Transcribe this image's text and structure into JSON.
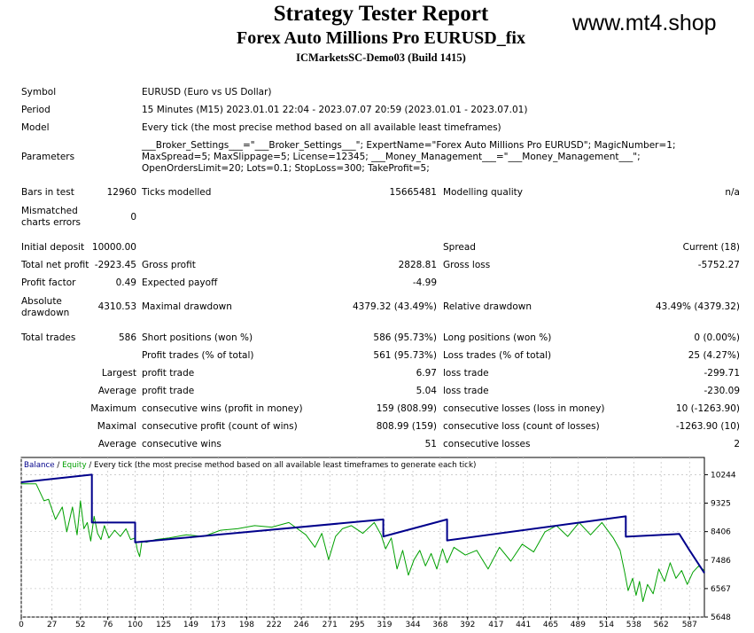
{
  "header": {
    "title": "Strategy Tester Report",
    "subtitle": "Forex Auto Millions Pro EURUSD_fix",
    "server": "ICMarketsSC-Demo03 (Build 1415)",
    "watermark": "www.mt4.shop"
  },
  "info": {
    "symbol_label": "Symbol",
    "symbol_value": "EURUSD (Euro vs US Dollar)",
    "period_label": "Period",
    "period_value": "15 Minutes (M15) 2023.01.01 22:04 - 2023.07.07 20:59 (2023.01.01 - 2023.07.01)",
    "model_label": "Model",
    "model_value": "Every tick (the most precise method based on all available least timeframes)",
    "params_label": "Parameters",
    "params_value": "___Broker_Settings___=\"___Broker_Settings___\"; ExpertName=\"Forex Auto Millions Pro EURUSD\"; MagicNumber=1; MaxSpread=5; MaxSlippage=5; License=12345; ___Money_Management___=\"___Money_Management___\"; OpenOrdersLimit=20; Lots=0.1; StopLoss=300; TakeProfit=5;"
  },
  "stats": {
    "bars_label": "Bars in test",
    "bars_value": "12960",
    "ticks_label": "Ticks modelled",
    "ticks_value": "15665481",
    "quality_label": "Modelling quality",
    "quality_value": "n/a",
    "mismatch_label": "Mismatched charts errors",
    "mismatch_value": "0",
    "deposit_label": "Initial deposit",
    "deposit_value": "10000.00",
    "spread_label": "Spread",
    "spread_value": "Current (18)",
    "net_label": "Total net profit",
    "net_value": "-2923.45",
    "gross_profit_label": "Gross profit",
    "gross_profit_value": "2828.81",
    "gross_loss_label": "Gross loss",
    "gross_loss_value": "-5752.27",
    "pf_label": "Profit factor",
    "pf_value": "0.49",
    "payoff_label": "Expected payoff",
    "payoff_value": "-4.99",
    "absdd_label": "Absolute drawdown",
    "absdd_value": "4310.53",
    "maxdd_label": "Maximal drawdown",
    "maxdd_value": "4379.32 (43.49%)",
    "reldd_label": "Relative drawdown",
    "reldd_value": "43.49% (4379.32)",
    "trades_label": "Total trades",
    "trades_value": "586",
    "short_label": "Short positions (won %)",
    "short_value": "586 (95.73%)",
    "long_label": "Long positions (won %)",
    "long_value": "0 (0.00%)",
    "ptrades_label": "Profit trades (% of total)",
    "ptrades_value": "561 (95.73%)",
    "ltrades_label": "Loss trades (% of total)",
    "ltrades_value": "25 (4.27%)",
    "largest_label": "Largest",
    "largest_profit_label": "profit trade",
    "largest_profit_value": "6.97",
    "largest_loss_label": "loss trade",
    "largest_loss_value": "-299.71",
    "average_label": "Average",
    "average_profit_label": "profit trade",
    "average_profit_value": "5.04",
    "average_loss_label": "loss trade",
    "average_loss_value": "-230.09",
    "maximum_label": "Maximum",
    "max_wins_label": "consecutive wins (profit in money)",
    "max_wins_value": "159 (808.99)",
    "max_losses_label": "consecutive losses (loss in money)",
    "max_losses_value": "10 (-1263.90)",
    "maximal_label": "Maximal",
    "maximal_profit_label": "consecutive profit (count of wins)",
    "maximal_profit_value": "808.99 (159)",
    "maximal_loss_label": "consecutive loss (count of losses)",
    "maximal_loss_value": "-1263.90 (10)",
    "avg2_label": "Average",
    "avg_wins_label": "consecutive wins",
    "avg_wins_value": "51",
    "avg_losses_label": "consecutive losses",
    "avg_losses_value": "2"
  },
  "chart_legend": {
    "balance": "Balance",
    "sep1": " / ",
    "equity": "Equity",
    "rest": " / Every tick (the most precise method based on all available least timeframes to generate each tick)"
  },
  "chart_data": {
    "type": "line",
    "xlim": [
      0,
      600
    ],
    "ylim": [
      5648,
      10800
    ],
    "x_ticks": [
      0,
      27,
      52,
      76,
      100,
      125,
      149,
      173,
      198,
      222,
      246,
      271,
      295,
      319,
      344,
      368,
      392,
      417,
      441,
      465,
      489,
      514,
      538,
      562,
      587
    ],
    "y_ticks": [
      10244,
      9325,
      8406,
      7486,
      6567,
      5648
    ],
    "colors": {
      "balance": "#00008b",
      "equity": "#00a000"
    },
    "series": [
      {
        "name": "Balance",
        "x": [
          0,
          62,
          62,
          100,
          100,
          318,
          318,
          374,
          374,
          531,
          531,
          578,
          587,
          600
        ],
        "y": [
          10000,
          10244,
          8700,
          8700,
          8060,
          8800,
          8250,
          8800,
          8120,
          8900,
          8240,
          8330,
          7800,
          7070
        ]
      },
      {
        "name": "Equity",
        "x": [
          0,
          13,
          20,
          24,
          30,
          36,
          40,
          45,
          49,
          52,
          55,
          58,
          61,
          64,
          67,
          70,
          73,
          77,
          82,
          87,
          92,
          96,
          100,
          102,
          104,
          106,
          110,
          118,
          130,
          145,
          160,
          175,
          190,
          205,
          220,
          235,
          250,
          258,
          264,
          270,
          276,
          282,
          290,
          300,
          310,
          316,
          320,
          325,
          330,
          335,
          340,
          345,
          350,
          355,
          360,
          365,
          370,
          374,
          380,
          390,
          400,
          410,
          420,
          430,
          440,
          450,
          460,
          470,
          480,
          490,
          500,
          510,
          520,
          526,
          530,
          533,
          537,
          540,
          543,
          546,
          550,
          555,
          560,
          565,
          570,
          575,
          580,
          585,
          590,
          595,
          600
        ],
        "y": [
          9950,
          9950,
          9400,
          9450,
          8800,
          9200,
          8400,
          9200,
          8300,
          9400,
          8500,
          8700,
          8100,
          8900,
          8350,
          8150,
          8600,
          8200,
          8450,
          8250,
          8500,
          8150,
          8200,
          7800,
          7600,
          8100,
          8060,
          8150,
          8200,
          8300,
          8250,
          8450,
          8500,
          8600,
          8550,
          8700,
          8300,
          7900,
          8350,
          7500,
          8250,
          8500,
          8600,
          8350,
          8700,
          8300,
          7850,
          8200,
          7200,
          7800,
          7000,
          7500,
          7800,
          7300,
          7700,
          7200,
          7850,
          7400,
          7900,
          7650,
          7800,
          7200,
          7900,
          7450,
          8000,
          7750,
          8400,
          8600,
          8250,
          8700,
          8300,
          8700,
          8200,
          7800,
          7100,
          6500,
          6900,
          6350,
          6800,
          6150,
          6700,
          6400,
          7200,
          6800,
          7400,
          6900,
          7150,
          6700,
          7100,
          7300,
          7150
        ]
      }
    ]
  }
}
